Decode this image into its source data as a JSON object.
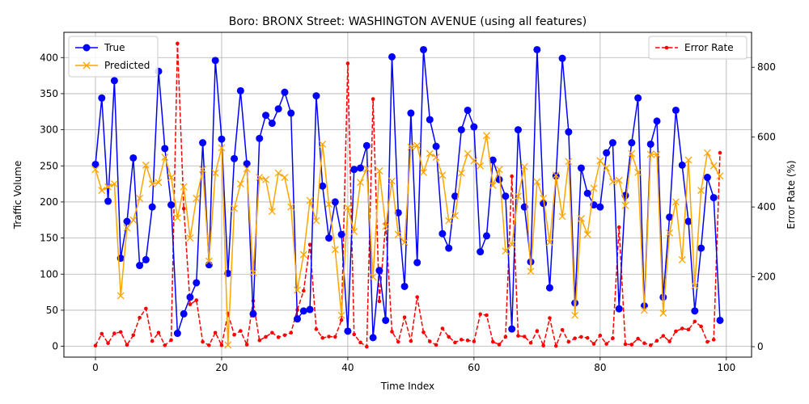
{
  "chart_data": {
    "type": "line",
    "title": "Boro: BRONX Street: WASHINGTON AVENUE (using all features)",
    "xlabel": "Time Index",
    "ylabel": "Traffic Volume",
    "ylabel_right": "Error Rate (%)",
    "xlim": [
      -5,
      104
    ],
    "ylim": [
      -15,
      435
    ],
    "ylim_right": [
      -30,
      900
    ],
    "x_ticks": [
      0,
      20,
      40,
      60,
      80,
      100
    ],
    "y_ticks": [
      0,
      50,
      100,
      150,
      200,
      250,
      300,
      350,
      400
    ],
    "y_ticks_right": [
      0,
      200,
      400,
      600,
      800
    ],
    "grid": true,
    "legend_left": "upper-left",
    "legend_right": "upper-right",
    "x": [
      0,
      1,
      2,
      3,
      4,
      5,
      6,
      7,
      8,
      9,
      10,
      11,
      12,
      13,
      14,
      15,
      16,
      17,
      18,
      19,
      20,
      21,
      22,
      23,
      24,
      25,
      26,
      27,
      28,
      29,
      30,
      31,
      32,
      33,
      34,
      35,
      36,
      37,
      38,
      39,
      40,
      41,
      42,
      43,
      44,
      45,
      46,
      47,
      48,
      49,
      50,
      51,
      52,
      53,
      54,
      55,
      56,
      57,
      58,
      59,
      60,
      61,
      62,
      63,
      64,
      65,
      66,
      67,
      68,
      69,
      70,
      71,
      72,
      73,
      74,
      75,
      76,
      77,
      78,
      79,
      80,
      81,
      82,
      83,
      84,
      85,
      86,
      87,
      88,
      89,
      90,
      91,
      92,
      93,
      94,
      95,
      96,
      97,
      98,
      99
    ],
    "series": [
      {
        "name": "True",
        "axis": "left",
        "color": "#0000ff",
        "marker": "circle",
        "linestyle": "solid",
        "values": [
          252,
          344,
          201,
          368,
          122,
          173,
          261,
          112,
          120,
          193,
          381,
          274,
          196,
          18,
          45,
          68,
          88,
          282,
          113,
          396,
          287,
          101,
          260,
          354,
          253,
          45,
          288,
          320,
          309,
          329,
          352,
          323,
          38,
          49,
          51,
          347,
          222,
          150,
          200,
          155,
          21,
          245,
          247,
          278,
          12,
          105,
          36,
          401,
          185,
          83,
          323,
          116,
          411,
          314,
          277,
          156,
          136,
          208,
          300,
          327,
          304,
          131,
          153,
          258,
          231,
          208,
          24,
          300,
          193,
          117,
          411,
          198,
          81,
          236,
          399,
          297,
          60,
          247,
          212,
          196,
          193,
          268,
          282,
          52,
          209,
          282,
          344,
          56,
          280,
          312,
          68,
          179,
          327,
          251,
          173,
          49,
          136,
          234,
          206,
          36
        ]
      },
      {
        "name": "Predicted",
        "axis": "left",
        "color": "#ffa500",
        "marker": "x",
        "linestyle": "solid",
        "values": [
          245,
          216,
          221,
          225,
          70,
          164,
          175,
          205,
          251,
          225,
          227,
          262,
          234,
          178,
          221,
          150,
          205,
          245,
          118,
          240,
          275,
          2,
          191,
          225,
          246,
          102,
          234,
          231,
          187,
          240,
          234,
          193,
          78,
          127,
          202,
          174,
          280,
          197,
          134,
          43,
          192,
          159,
          227,
          246,
          96,
          243,
          166,
          229,
          155,
          144,
          276,
          278,
          241,
          267,
          262,
          237,
          174,
          181,
          240,
          267,
          257,
          250,
          292,
          223,
          245,
          132,
          141,
          208,
          249,
          104,
          228,
          205,
          144,
          237,
          180,
          256,
          43,
          177,
          155,
          219,
          257,
          247,
          228,
          230,
          195,
          267,
          241,
          50,
          266,
          266,
          46,
          157,
          200,
          120,
          258,
          84,
          216,
          268,
          250,
          236
        ]
      },
      {
        "name": "Error Rate",
        "axis": "right",
        "color": "#ff0000",
        "marker": "dot",
        "linestyle": "dashed",
        "values": [
          3,
          37,
          10,
          38,
          42,
          5,
          33,
          83,
          109,
          16,
          40,
          4,
          19,
          868,
          395,
          121,
          133,
          14,
          4,
          40,
          4,
          95,
          34,
          45,
          6,
          131,
          18,
          28,
          40,
          27,
          33,
          40,
          105,
          160,
          292,
          50,
          25,
          29,
          28,
          76,
          811,
          35,
          12,
          0,
          709,
          130,
          353,
          43,
          14,
          84,
          16,
          142,
          41,
          15,
          5,
          52,
          28,
          12,
          20,
          18,
          15,
          93,
          90,
          14,
          6,
          28,
          488,
          31,
          29,
          11,
          45,
          3,
          82,
          2,
          48,
          14,
          24,
          28,
          25,
          8,
          32,
          8,
          24,
          342,
          7,
          6,
          23,
          10,
          4,
          17,
          31,
          15,
          44,
          52,
          49,
          72,
          58,
          14,
          20,
          555
        ]
      }
    ]
  }
}
